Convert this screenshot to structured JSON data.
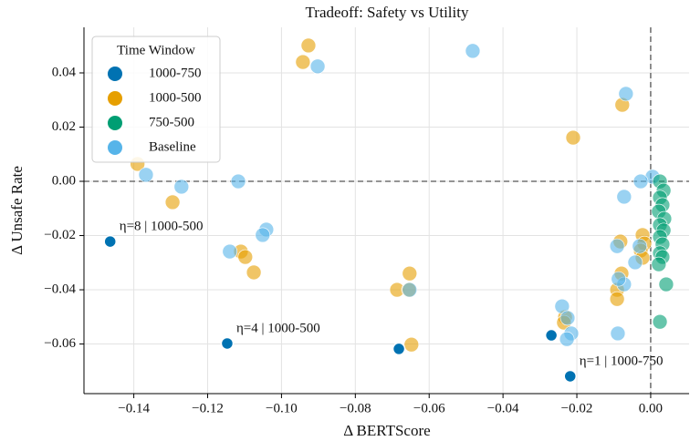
{
  "chart_data": {
    "type": "scatter",
    "title": "Tradeoff: Safety vs Utility",
    "xlabel": "Δ BERTScore",
    "ylabel": "Δ Unsafe Rate",
    "legend_title": "Time Window",
    "legend": "upper left",
    "grid": true,
    "xlim": [
      -0.1535,
      0.0104
    ],
    "ylim": [
      -0.0783,
      0.0568
    ],
    "xticks": [
      {
        "value": -0.14,
        "label": "−0.14"
      },
      {
        "value": -0.12,
        "label": "−0.12"
      },
      {
        "value": -0.1,
        "label": "−0.10"
      },
      {
        "value": -0.08,
        "label": "−0.08"
      },
      {
        "value": -0.06,
        "label": "−0.06"
      },
      {
        "value": -0.04,
        "label": "−0.04"
      },
      {
        "value": -0.02,
        "label": "−0.02"
      },
      {
        "value": 0,
        "label": "0.00"
      }
    ],
    "yticks": [
      {
        "value": -0.06,
        "label": "−0.06"
      },
      {
        "value": -0.04,
        "label": "−0.04"
      },
      {
        "value": -0.02,
        "label": "−0.02"
      },
      {
        "value": 0,
        "label": "0.00"
      },
      {
        "value": 0.02,
        "label": "0.02"
      },
      {
        "value": 0.04,
        "label": "0.04"
      }
    ],
    "annotations": [
      "η=8 | 1000-500",
      "η=4 | 1000-500",
      "η=1 | 1000-750"
    ],
    "series": [
      {
        "name": "1000-750",
        "color": "#0072b2",
        "x": [
          -0.1464,
          -0.1147,
          -0.0682,
          -0.0269,
          -0.0218
        ],
        "values": [
          -0.0222,
          -0.0598,
          -0.0618,
          -0.0568,
          -0.0719
        ]
      },
      {
        "name": "1000-500",
        "color": "#e69f00",
        "x": [
          -0.0927,
          -0.0942,
          -0.0077,
          -0.021,
          -0.139,
          -0.1295,
          -0.111,
          -0.1098,
          -0.1075,
          -0.0653,
          -0.0687,
          -0.0655,
          -0.0648,
          -0.0232,
          -0.0235,
          -0.0022,
          -0.0017,
          -0.0082,
          -0.0027,
          -0.0022,
          -0.0079,
          -0.0091,
          -0.0091
        ],
        "values": [
          0.0501,
          0.044,
          0.0282,
          0.0161,
          0.0064,
          -0.0077,
          -0.0259,
          -0.0279,
          -0.0336,
          -0.034,
          -0.04,
          -0.04,
          -0.0602,
          -0.0501,
          -0.0521,
          -0.0198,
          -0.0229,
          -0.0222,
          -0.0255,
          -0.0282,
          -0.034,
          -0.04,
          -0.0434
        ]
      },
      {
        "name": "750-500",
        "color": "#009e73",
        "x": [
          0.0025,
          0.0035,
          0.0025,
          0.0032,
          0.0022,
          0.0037,
          0.0025,
          0.0035,
          0.0025,
          0.0032,
          0.0025,
          0.0032,
          0.0022,
          0.0042,
          0.0025
        ],
        "values": [
          0,
          -0.0034,
          -0.006,
          -0.0087,
          -0.0111,
          -0.0138,
          -0.0161,
          -0.0181,
          -0.0205,
          -0.0232,
          -0.0265,
          -0.0279,
          -0.0306,
          -0.038,
          -0.0518
        ]
      },
      {
        "name": "Baseline",
        "color": "#56b4e9",
        "x": [
          -0.0482,
          -0.0902,
          -0.0067,
          -0.1367,
          -0.1271,
          -0.1117,
          -0.1041,
          -0.1051,
          -0.114,
          -0.0653,
          -0.024,
          -0.0225,
          -0.0215,
          -0.0227,
          -0.0089,
          0.0005,
          -0.0027,
          -0.0072,
          -0.0091,
          -0.003,
          -0.0042,
          -0.0072,
          -0.0087
        ],
        "values": [
          0.0481,
          0.0424,
          0.0323,
          0.0024,
          -0.002,
          0,
          -0.0178,
          -0.0198,
          -0.0259,
          -0.04,
          -0.0461,
          -0.0504,
          -0.0561,
          -0.0582,
          -0.0561,
          0.0017,
          0,
          -0.0057,
          -0.0239,
          -0.0239,
          -0.0299,
          -0.038,
          -0.036
        ]
      }
    ]
  }
}
